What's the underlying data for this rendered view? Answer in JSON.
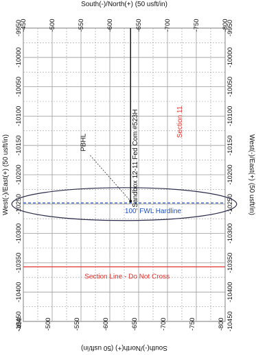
{
  "chart_data": {
    "type": "scatter",
    "top_axis_label": "South(-)/North(+) (50 usft/in)",
    "bottom_axis_label": "South(-)/North(+) (50 usft/in)",
    "left_axis_label": "West(-)/East(+) (50 usft/in)",
    "right_axis_label": "West(-)/East(+) (50 usft/in)",
    "ns_ticks": [
      "-450",
      "-500",
      "-550",
      "-600",
      "-650",
      "-700",
      "-750",
      "-800"
    ],
    "ns_tick_values": [
      -450,
      -500,
      -550,
      -600,
      -650,
      -700,
      -750,
      -800
    ],
    "we_ticks": [
      "-9950",
      "-10000",
      "-10050",
      "-10100",
      "-10150",
      "-10200",
      "-10250",
      "-10300",
      "-10350",
      "-10400",
      "-10450"
    ],
    "we_tick_values": [
      -9950,
      -10000,
      -10050,
      -10100,
      -10150,
      -10200,
      -10250,
      -10300,
      -10350,
      -10400,
      -10450
    ],
    "ns_range": [
      -450,
      -800
    ],
    "we_range": [
      -9950,
      -10450
    ],
    "grid": true,
    "well_path": {
      "name": "Sandbox 12-11 Fed Com #523H",
      "ns": -636,
      "we_start": -9950,
      "we_end": -10245
    },
    "pbhl": {
      "label": "PBHL",
      "ns": -636,
      "we": -10245
    },
    "hardline": {
      "label": "100' FWL Hardline",
      "we": -10248
    },
    "section_line": {
      "label": "Section Line - Do Not Cross",
      "we": -10357
    },
    "section_label": {
      "label": "Section 11",
      "ns": -725,
      "we": -10110
    },
    "ellipse": {
      "ns_center": -625,
      "we_center": -10250,
      "ns_halfwidth": 195,
      "we_halfwidth": 28
    },
    "colors": {
      "well": "#1a1a1a",
      "hardline": "#1f4fbf",
      "section_line": "#e0322d",
      "section": "#e0322d",
      "grid": "#9a9a9a",
      "ellipse": "#2a2a4a"
    }
  }
}
